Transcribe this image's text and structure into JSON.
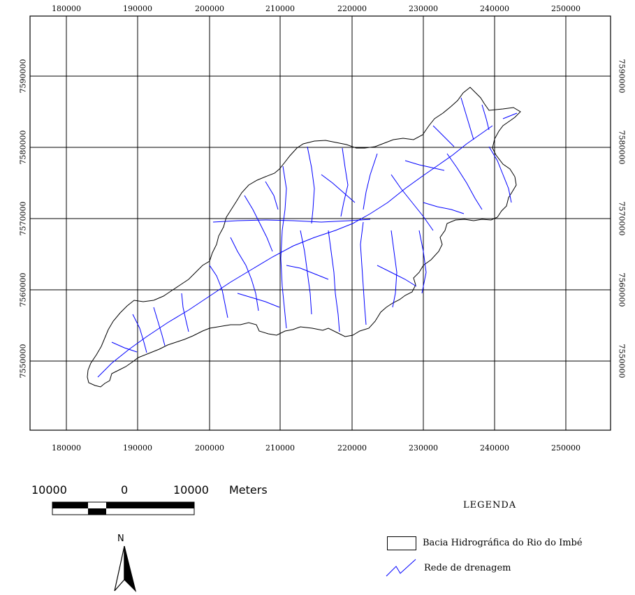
{
  "map": {
    "x_ticks": [
      "180000",
      "190000",
      "200000",
      "210000",
      "220000",
      "230000",
      "240000",
      "250000"
    ],
    "y_ticks": [
      "7590000",
      "7580000",
      "7570000",
      "7560000",
      "7550000"
    ]
  },
  "scale_bar": {
    "left_label": "10000",
    "mid_label": "0",
    "right_label": "10000",
    "units": "Meters"
  },
  "north_arrow": {
    "letter": "N"
  },
  "legend": {
    "title": "LEGENDA",
    "items": [
      {
        "label": "Bacia Hidrográfica do Rio do Imbé",
        "symbol": "polygon"
      },
      {
        "label": "Rede de drenagem",
        "symbol": "line"
      }
    ]
  },
  "colors": {
    "drainage": "#0000ff",
    "boundary": "#000000",
    "grid": "#000000"
  }
}
